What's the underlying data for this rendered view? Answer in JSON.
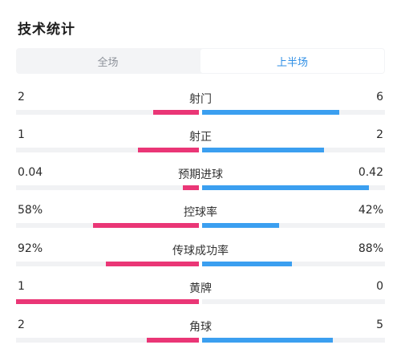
{
  "page": {
    "title": "技术统计"
  },
  "tabs": [
    {
      "label": "全场",
      "active": false
    },
    {
      "label": "上半场",
      "active": true
    }
  ],
  "colors": {
    "home": "#ea3676",
    "away": "#3b9ff0",
    "active_tab": "#2f8fe6"
  },
  "stats": [
    {
      "name": "射门",
      "left": "2",
      "right": "6",
      "left_fill": 0.25,
      "right_fill": 0.75
    },
    {
      "name": "射正",
      "left": "1",
      "right": "2",
      "left_fill": 0.333,
      "right_fill": 0.667
    },
    {
      "name": "预期进球",
      "left": "0.04",
      "right": "0.42",
      "left_fill": 0.087,
      "right_fill": 0.913
    },
    {
      "name": "控球率",
      "left": "58%",
      "right": "42%",
      "left_fill": 0.58,
      "right_fill": 0.42
    },
    {
      "name": "传球成功率",
      "left": "92%",
      "right": "88%",
      "left_fill": 0.51,
      "right_fill": 0.49
    },
    {
      "name": "黄牌",
      "left": "1",
      "right": "0",
      "left_fill": 1.0,
      "right_fill": 0.0
    },
    {
      "name": "角球",
      "left": "2",
      "right": "5",
      "left_fill": 0.286,
      "right_fill": 0.714
    }
  ]
}
